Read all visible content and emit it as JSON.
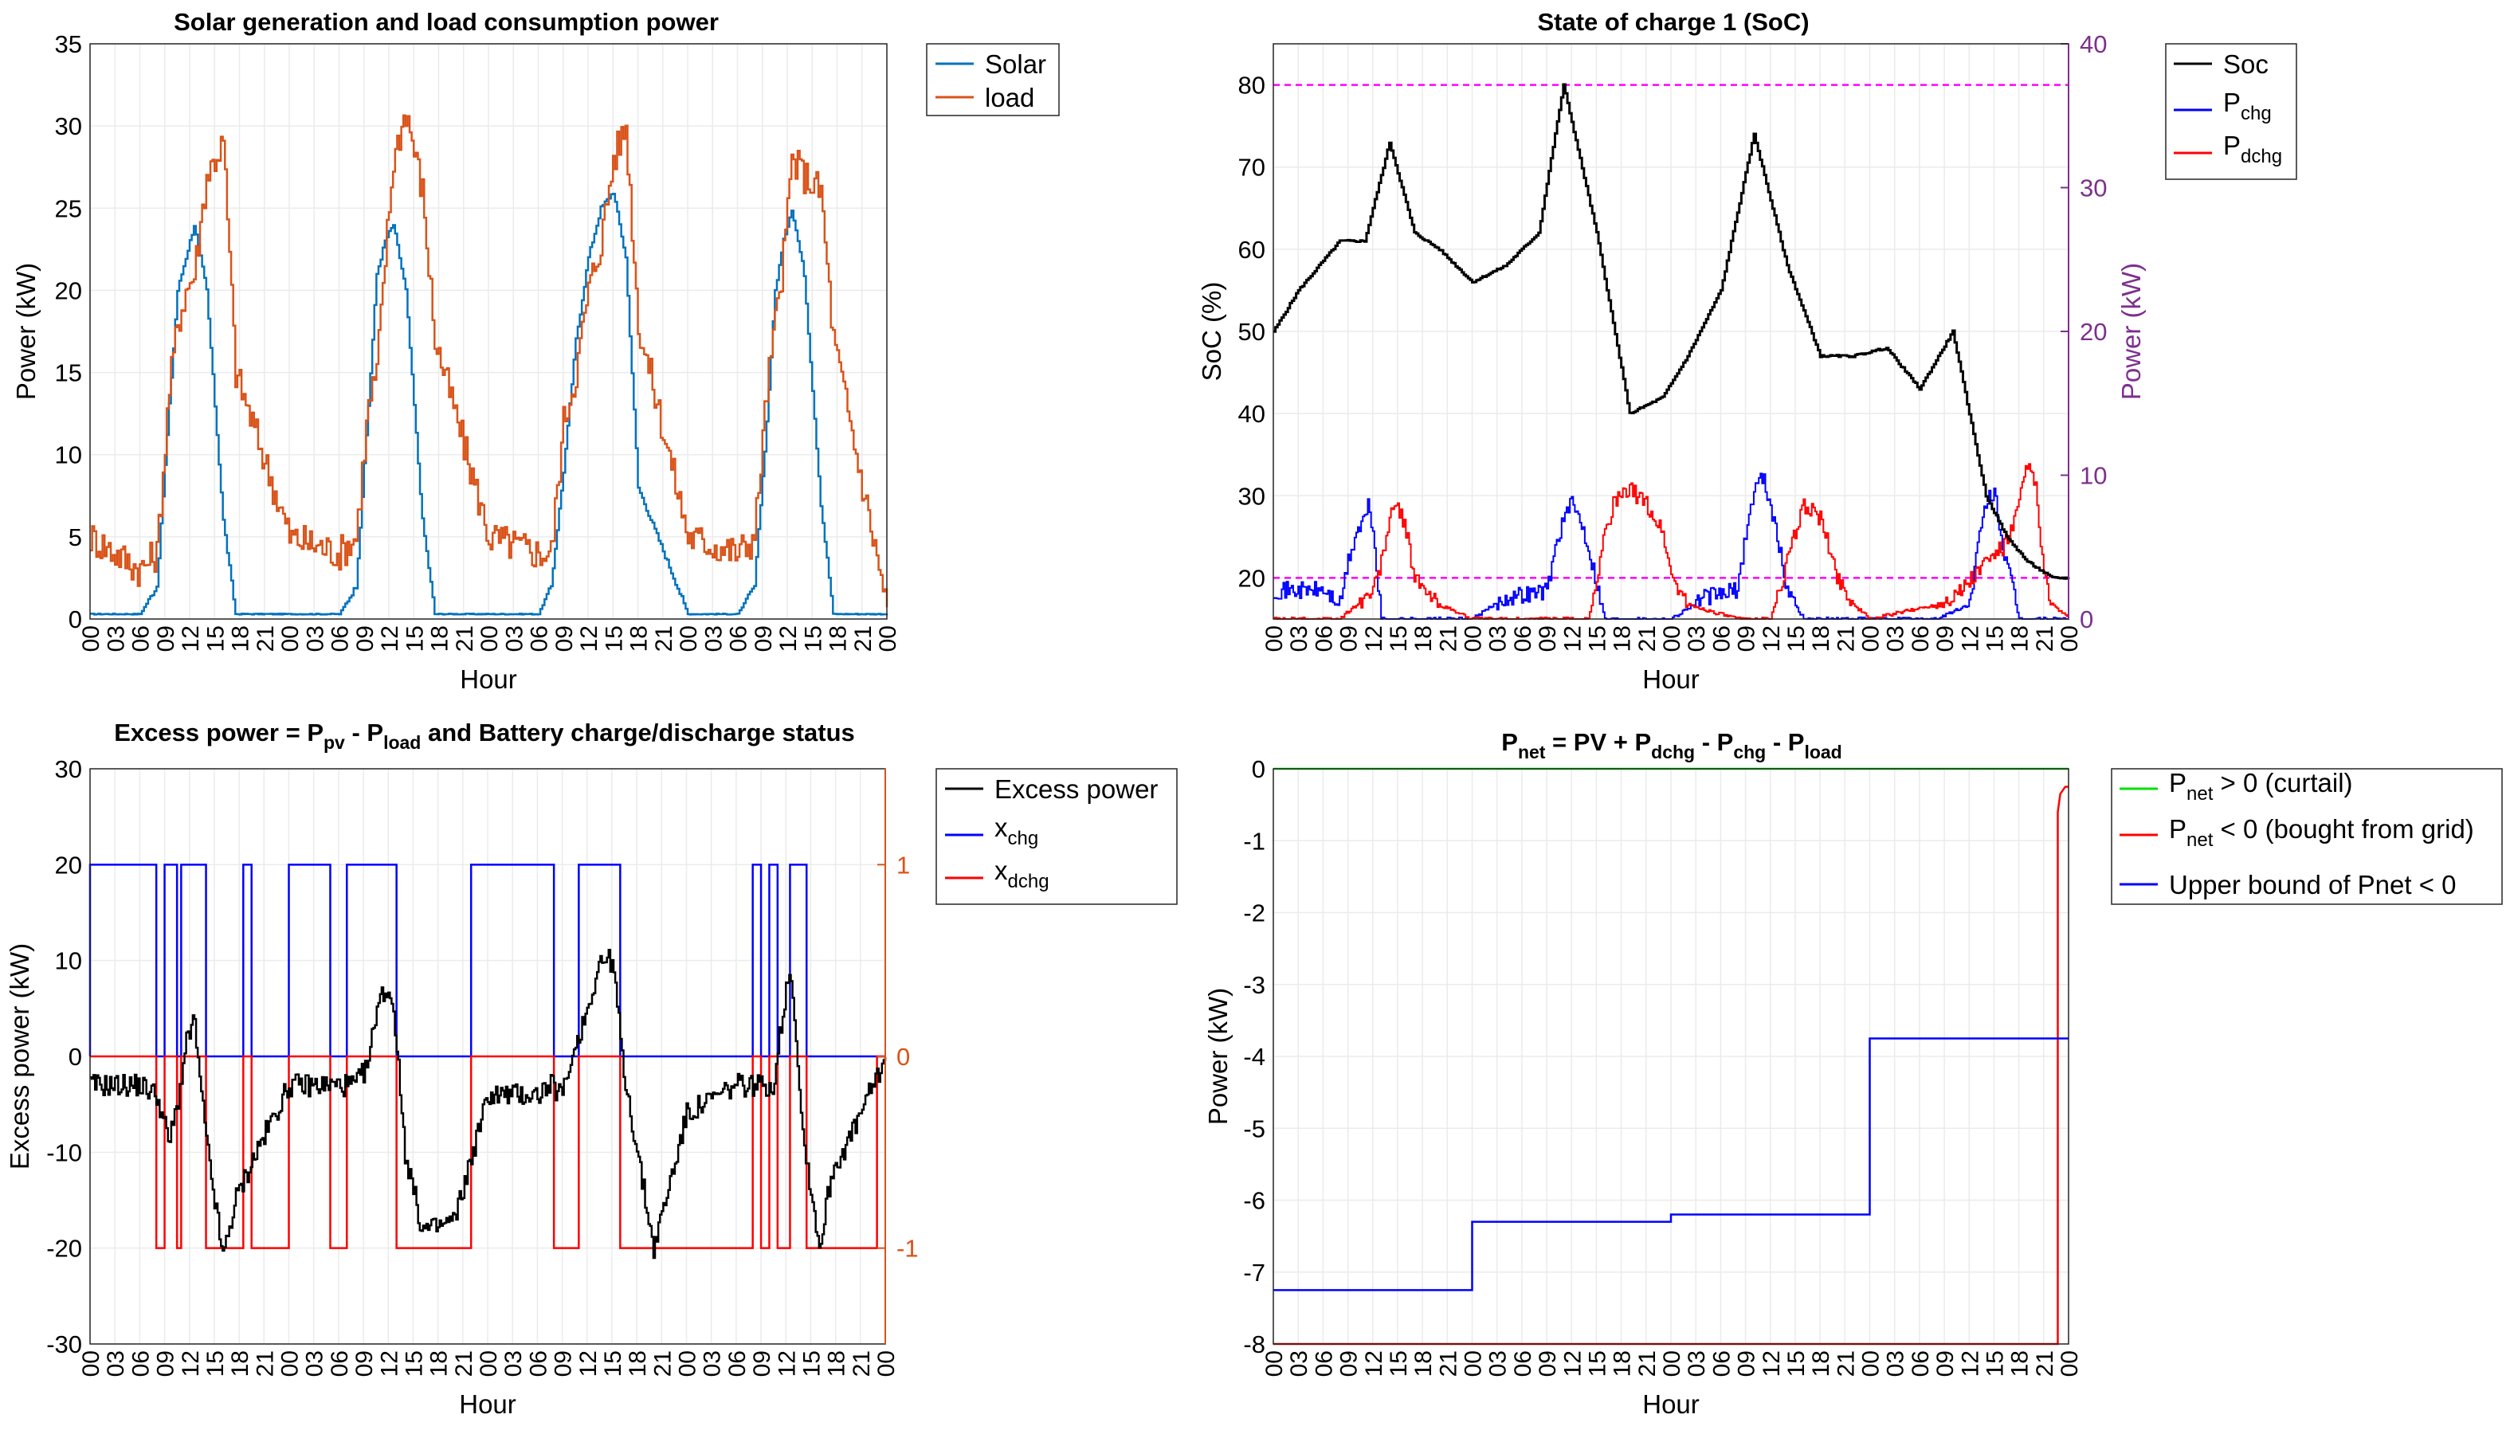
{
  "hour_ticks": [
    "00",
    "03",
    "06",
    "09",
    "12",
    "15",
    "18",
    "21",
    "00",
    "03",
    "06",
    "09",
    "12",
    "15",
    "18",
    "21",
    "00",
    "03",
    "06",
    "09",
    "12",
    "15",
    "18",
    "21",
    "00",
    "03",
    "06",
    "09",
    "12",
    "15",
    "18",
    "21",
    "00"
  ],
  "chart_data": [
    {
      "type": "line",
      "title": "Solar generation and load consumption power",
      "xlabel": "Hour",
      "ylabel": "Power (kW)",
      "ylim": [
        0,
        35
      ],
      "yticks": [
        "0",
        "5",
        "10",
        "15",
        "20",
        "25",
        "30",
        "35"
      ],
      "grid": true,
      "legend": {
        "placement": "outside-top-right",
        "entries": [
          "Solar",
          "load"
        ]
      },
      "x": [
        0,
        6,
        8,
        9.5,
        10.5,
        11.5,
        12.5,
        14,
        16,
        17.5,
        24,
        30,
        32,
        33.5,
        34.5,
        35.5,
        36.5,
        38,
        40,
        41.5,
        48,
        54,
        55.5,
        57,
        58.5,
        60,
        61.5,
        63,
        64.5,
        66,
        72,
        78,
        80,
        81.5,
        82.5,
        83.5,
        84.5,
        86,
        88,
        89.5,
        96
      ],
      "series": [
        {
          "name": "Solar",
          "color": "#0072BD",
          "values": [
            0.3,
            0.3,
            2,
            13,
            20,
            22,
            24,
            20,
            6,
            0.3,
            0.3,
            0.3,
            2,
            13,
            21,
            23,
            24,
            20,
            6,
            0.3,
            0.3,
            0.3,
            2,
            9,
            17,
            22,
            25,
            26,
            22,
            8,
            0.3,
            0.3,
            2,
            12,
            20,
            23,
            25,
            21,
            7,
            0.3,
            0.3
          ]
        },
        {
          "name": "load",
          "color": "#D95319",
          "values": [
            5,
            3,
            4,
            14,
            18,
            20,
            21,
            27,
            29,
            15,
            5,
            4,
            5,
            13,
            15,
            22,
            28,
            31,
            26,
            17,
            5,
            4,
            4,
            12,
            15,
            20,
            23,
            28,
            30,
            18,
            5,
            4,
            5,
            14,
            18,
            22,
            28,
            27,
            26,
            17,
            0.6
          ]
        }
      ]
    },
    {
      "type": "line",
      "title": "State of charge 1 (SoC)",
      "xlabel": "Hour",
      "ylabel": "SoC (%)",
      "ylabel_right": "Power (kW)",
      "ylim": [
        15,
        85
      ],
      "yticks": [
        "20",
        "30",
        "40",
        "50",
        "60",
        "70",
        "80"
      ],
      "ylim_right": [
        0,
        40
      ],
      "yticks_right": [
        "0",
        "10",
        "20",
        "30",
        "40"
      ],
      "reference_lines": [
        80,
        20
      ],
      "grid": true,
      "legend": {
        "placement": "outside-top-right",
        "entries": [
          "Soc",
          "P_chg",
          "P_dchg"
        ]
      },
      "x": [
        0,
        3,
        8,
        11,
        14,
        17,
        20,
        24,
        28,
        32,
        35,
        39,
        43,
        47,
        50,
        54,
        58,
        62,
        66,
        70,
        74,
        78,
        82,
        86,
        88.5,
        91,
        94,
        96
      ],
      "series": [
        {
          "name": "Soc",
          "color": "#000000",
          "axis": "left",
          "values": [
            50,
            55,
            61,
            61,
            73,
            62,
            60,
            56,
            58,
            62,
            80,
            62,
            40,
            42,
            47,
            55,
            74,
            58,
            47,
            47,
            48,
            43,
            50,
            30,
            25,
            22,
            20,
            20
          ]
        }
      ],
      "bars_power": [
        {
          "name": "P_chg",
          "color": "#0000FF",
          "axis": "right",
          "x": [
            0,
            6,
            8,
            9,
            10,
            11,
            11.5,
            12,
            12.5,
            13,
            15,
            17,
            20,
            24,
            28,
            33,
            34,
            35,
            36,
            37,
            38,
            40,
            48,
            52,
            56,
            57,
            58,
            59,
            60,
            61,
            62,
            64,
            72,
            80,
            84,
            85,
            86,
            87,
            88,
            90,
            96
          ],
          "values": [
            2,
            2,
            1,
            4,
            6,
            7,
            8,
            6,
            3,
            0,
            0,
            0,
            0,
            0,
            1.5,
            2,
            5,
            7,
            8,
            7,
            5,
            0,
            0,
            1.5,
            2,
            6,
            9,
            10,
            8,
            5,
            2,
            0,
            0,
            0,
            1,
            5,
            8,
            9,
            5,
            0,
            0
          ]
        },
        {
          "name": "P_dchg",
          "color": "#FF0000",
          "axis": "right",
          "x": [
            0,
            8,
            10,
            12,
            13,
            14,
            15,
            16,
            17,
            18,
            20,
            24,
            32,
            38,
            40,
            41,
            43,
            45,
            47,
            48,
            50,
            56,
            60,
            62,
            64,
            66,
            68,
            70,
            72,
            80,
            83,
            86,
            88,
            89,
            90,
            91,
            92,
            93,
            94,
            96
          ],
          "values": [
            0,
            0,
            1,
            2,
            4,
            7,
            8,
            6,
            3,
            2,
            1,
            0,
            0,
            0,
            6,
            8,
            9,
            8,
            6,
            3,
            1,
            0,
            0,
            4,
            8,
            7,
            3,
            1,
            0,
            1,
            2,
            4,
            5,
            6,
            8,
            11,
            9,
            3,
            1,
            0
          ]
        }
      ]
    },
    {
      "type": "line",
      "title": "Excess power = P_pv - P_load and Battery charge/discharge status",
      "xlabel": "Hour",
      "ylabel": "Excess power (kW)",
      "ylim": [
        -30,
        30
      ],
      "yticks": [
        "-30",
        "-20",
        "-10",
        "0",
        "10",
        "20",
        "30"
      ],
      "ylim_right": [
        -1.5,
        1.5
      ],
      "yticks_right": [
        "-1",
        "0",
        "1"
      ],
      "grid": true,
      "legend": {
        "placement": "outside-top-right",
        "entries": [
          "Excess power",
          "x_chg",
          "x_dchg"
        ]
      },
      "x": [
        0,
        6,
        8,
        9.5,
        10.5,
        11.5,
        12.5,
        14,
        16,
        17.5,
        20,
        24,
        30,
        32,
        33.5,
        34.5,
        35.5,
        36.5,
        38,
        40,
        41.5,
        44,
        48,
        54,
        55.5,
        57,
        58.5,
        60,
        61.5,
        63,
        64.5,
        66,
        68,
        72,
        78,
        80,
        81.5,
        82.5,
        83.5,
        84.5,
        86,
        88,
        89.5,
        92,
        96
      ],
      "series": [
        {
          "name": "Excess power",
          "color": "#000000",
          "values": [
            -3,
            -3,
            -4,
            -9,
            -5,
            1,
            4,
            -9,
            -21,
            -15,
            -10,
            -3,
            -3,
            -3,
            -1,
            5,
            7,
            6,
            -10,
            -18,
            -18,
            -17,
            -4,
            -4,
            -3,
            -4,
            1,
            5,
            10,
            10,
            -2,
            -10,
            -20,
            -6,
            -3,
            -3,
            -3,
            -3,
            4,
            10,
            -8,
            -20,
            -12,
            -8,
            0
          ]
        }
      ],
      "status": [
        {
          "name": "x_chg",
          "color": "#0000FF",
          "on_intervals": [
            [
              0,
              8
            ],
            [
              9,
              10.5
            ],
            [
              11,
              14
            ],
            [
              18.5,
              19.5
            ],
            [
              24,
              29
            ],
            [
              31,
              37
            ],
            [
              46,
              56
            ],
            [
              59,
              64
            ],
            [
              80,
              81
            ],
            [
              82,
              83
            ],
            [
              84.5,
              86.5
            ]
          ],
          "final_state": 0
        },
        {
          "name": "x_dchg",
          "color": "#FF0000",
          "on_intervals": [
            [
              8,
              9
            ],
            [
              10.5,
              11
            ],
            [
              14,
              18.5
            ],
            [
              19.5,
              24
            ],
            [
              29,
              31
            ],
            [
              37,
              46
            ],
            [
              56,
              59
            ],
            [
              64,
              80
            ],
            [
              81,
              82
            ],
            [
              83,
              84.5
            ],
            [
              86.5,
              95
            ]
          ],
          "final_state": 0
        }
      ]
    },
    {
      "type": "line",
      "title": "P_net = PV + P_dchg - P_chg - P_load",
      "xlabel": "Hour",
      "ylabel": "Power (kW)",
      "ylim": [
        -8,
        0
      ],
      "yticks": [
        "-8",
        "-7",
        "-6",
        "-5",
        "-4",
        "-3",
        "-2",
        "-1",
        "0"
      ],
      "grid": true,
      "legend": {
        "placement": "outside-top-right",
        "entries": [
          "P_net > 0 (curtail)",
          "P_net < 0 (bought from grid)",
          "Upper bound of Pnet < 0"
        ]
      },
      "series": [
        {
          "name": "P_net > 0 (curtail)",
          "color": "#00E000",
          "x": [
            0,
            96
          ],
          "values": [
            0,
            0
          ]
        },
        {
          "name": "P_net < 0 (bought from grid)",
          "color": "#FF0000",
          "x": [
            0,
            94.7,
            94.7,
            95,
            95.3,
            95.6,
            96
          ],
          "values": [
            -8,
            -8,
            -0.6,
            -0.35,
            -0.3,
            -0.25,
            -0.25
          ]
        },
        {
          "name": "Upper bound of Pnet < 0",
          "color": "#0000FF",
          "x": [
            0,
            24,
            24,
            48,
            48,
            72,
            72,
            96
          ],
          "values": [
            -7.25,
            -7.25,
            -6.3,
            -6.3,
            -6.2,
            -6.2,
            -3.75,
            -3.75
          ]
        }
      ]
    }
  ],
  "text": {
    "c0": {
      "title": "Solar generation and load consumption power",
      "xlabel": "Hour",
      "ylabel": "Power (kW)",
      "leg": [
        "Solar",
        "load"
      ]
    },
    "c1": {
      "title": "State of charge 1 (SoC)",
      "xlabel": "Hour",
      "ylabel": "SoC (%)",
      "ylabel_right": "Power (kW)",
      "leg0": "Soc",
      "leg_p": "P",
      "leg1_sub": "chg",
      "leg2_sub": "dchg"
    },
    "c2": {
      "t1": "Excess power = P",
      "t_sub1": "pv",
      "t2": " - P",
      "t_sub2": "load",
      "t3": " and Battery charge/discharge status",
      "xlabel": "Hour",
      "ylabel": "Excess power (kW)",
      "leg0": "Excess power",
      "leg_x": "x",
      "leg1_sub": "chg",
      "leg2_sub": "dchg"
    },
    "c3": {
      "t1": "P",
      "t_sub1": "net",
      "t2": " = PV + P",
      "t_sub2": "dchg",
      "t3": " - P",
      "t_sub3": "chg",
      "t4": " - P",
      "t_sub4": "load",
      "xlabel": "Hour",
      "ylabel": "Power (kW)",
      "leg_p": "P",
      "leg_sub": "net",
      "leg0_rest": " > 0 (curtail)",
      "leg1_rest": " < 0 (bought from grid)",
      "leg2": "Upper bound of Pnet < 0"
    }
  },
  "colors": {
    "axis_right_orange": "#D95319",
    "axis_right_purple": "#7E2F8E",
    "ref_line_magenta": "#FF00FF",
    "grid": "#EBEBEB"
  }
}
